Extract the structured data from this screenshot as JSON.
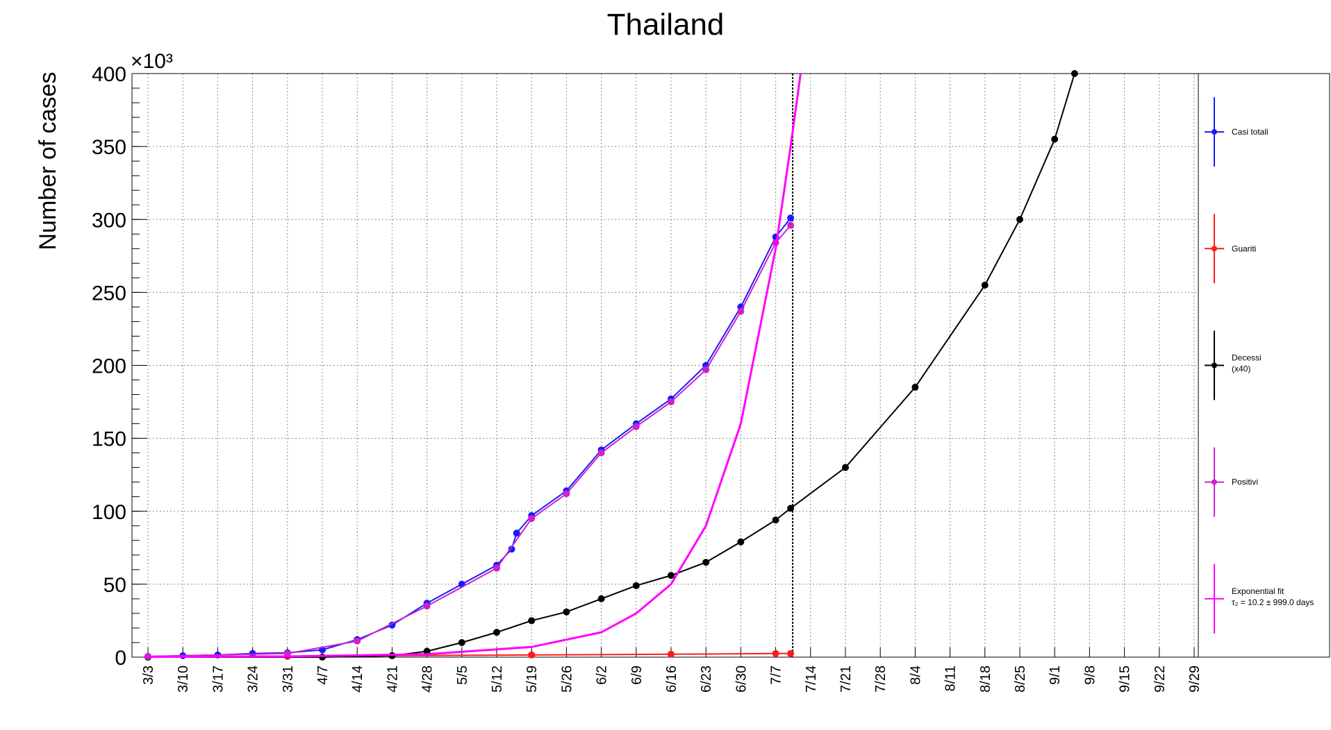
{
  "chart_data": {
    "type": "line",
    "title": "Thailand",
    "xlabel": "",
    "ylabel": "Number of cases",
    "y_multiplier_label": "×10³",
    "ylim": [
      0,
      400
    ],
    "grid": true,
    "legend_placement": "right",
    "x_ticks": [
      "3/3",
      "3/10",
      "3/17",
      "3/24",
      "3/31",
      "4/7",
      "4/14",
      "4/21",
      "4/28",
      "5/5",
      "5/12",
      "5/19",
      "5/26",
      "6/2",
      "6/9",
      "6/16",
      "6/23",
      "6/30",
      "7/7",
      "7/14",
      "7/21",
      "7/28",
      "8/4",
      "8/11",
      "8/18",
      "8/25",
      "9/1",
      "9/8",
      "9/15",
      "9/22",
      "9/29"
    ],
    "y_ticks": [
      0,
      50,
      100,
      150,
      200,
      250,
      300,
      350,
      400
    ],
    "series": [
      {
        "name": "Casi totali",
        "color": "#1a1aff",
        "x": [
          "3/3",
          "3/10",
          "3/17",
          "3/24",
          "3/31",
          "4/7",
          "4/14",
          "4/21",
          "4/28",
          "5/5",
          "5/12",
          "5/15",
          "5/16",
          "5/19",
          "5/26",
          "6/2",
          "6/9",
          "6/16",
          "6/23",
          "6/30",
          "7/7",
          "7/10"
        ],
        "values": [
          0.5,
          1,
          1.5,
          2.5,
          3,
          5,
          12,
          22,
          37,
          50,
          63,
          74,
          85,
          97,
          114,
          142,
          160,
          177,
          200,
          240,
          288,
          301
        ]
      },
      {
        "name": "Guariti",
        "color": "#ff1a1a",
        "x": [
          "3/3",
          "3/31",
          "4/21",
          "5/19",
          "6/16",
          "7/7",
          "7/10"
        ],
        "values": [
          0,
          0.5,
          1,
          1.5,
          2,
          2.5,
          2.5
        ]
      },
      {
        "name": "Decessi",
        "name_line2": "(x40)",
        "color": "#000000",
        "x": [
          "3/3",
          "4/7",
          "4/21",
          "4/28",
          "5/5",
          "5/12",
          "5/19",
          "5/26",
          "6/2",
          "6/9",
          "6/16",
          "6/23",
          "6/30",
          "7/7",
          "7/10",
          "7/21",
          "8/4",
          "8/18",
          "8/25",
          "9/1",
          "9/5"
        ],
        "values": [
          0,
          0,
          1,
          4,
          10,
          17,
          25,
          31,
          40,
          49,
          56,
          65,
          79,
          94,
          102,
          130,
          185,
          255,
          300,
          355,
          400
        ]
      },
      {
        "name": "Positivi",
        "color": "#cc22cc",
        "x": [
          "3/3",
          "3/31",
          "4/14",
          "4/28",
          "5/12",
          "5/19",
          "5/26",
          "6/2",
          "6/9",
          "6/16",
          "6/23",
          "6/30",
          "7/7",
          "7/10"
        ],
        "values": [
          0.5,
          2.5,
          11,
          35,
          61,
          95,
          112,
          140,
          158,
          175,
          197,
          237,
          284,
          296
        ]
      },
      {
        "name": "Exponential fit",
        "name_line2": "τ₂ = 10.2  ± 999.0 days",
        "color": "#ff00ff",
        "x": [
          "3/3",
          "3/31",
          "4/28",
          "5/19",
          "6/2",
          "6/9",
          "6/16",
          "6/23",
          "6/30",
          "7/7",
          "7/10",
          "7/12"
        ],
        "values": [
          0.2,
          0.5,
          2,
          7,
          17,
          30,
          50,
          90,
          160,
          280,
          350,
          400
        ]
      }
    ]
  }
}
